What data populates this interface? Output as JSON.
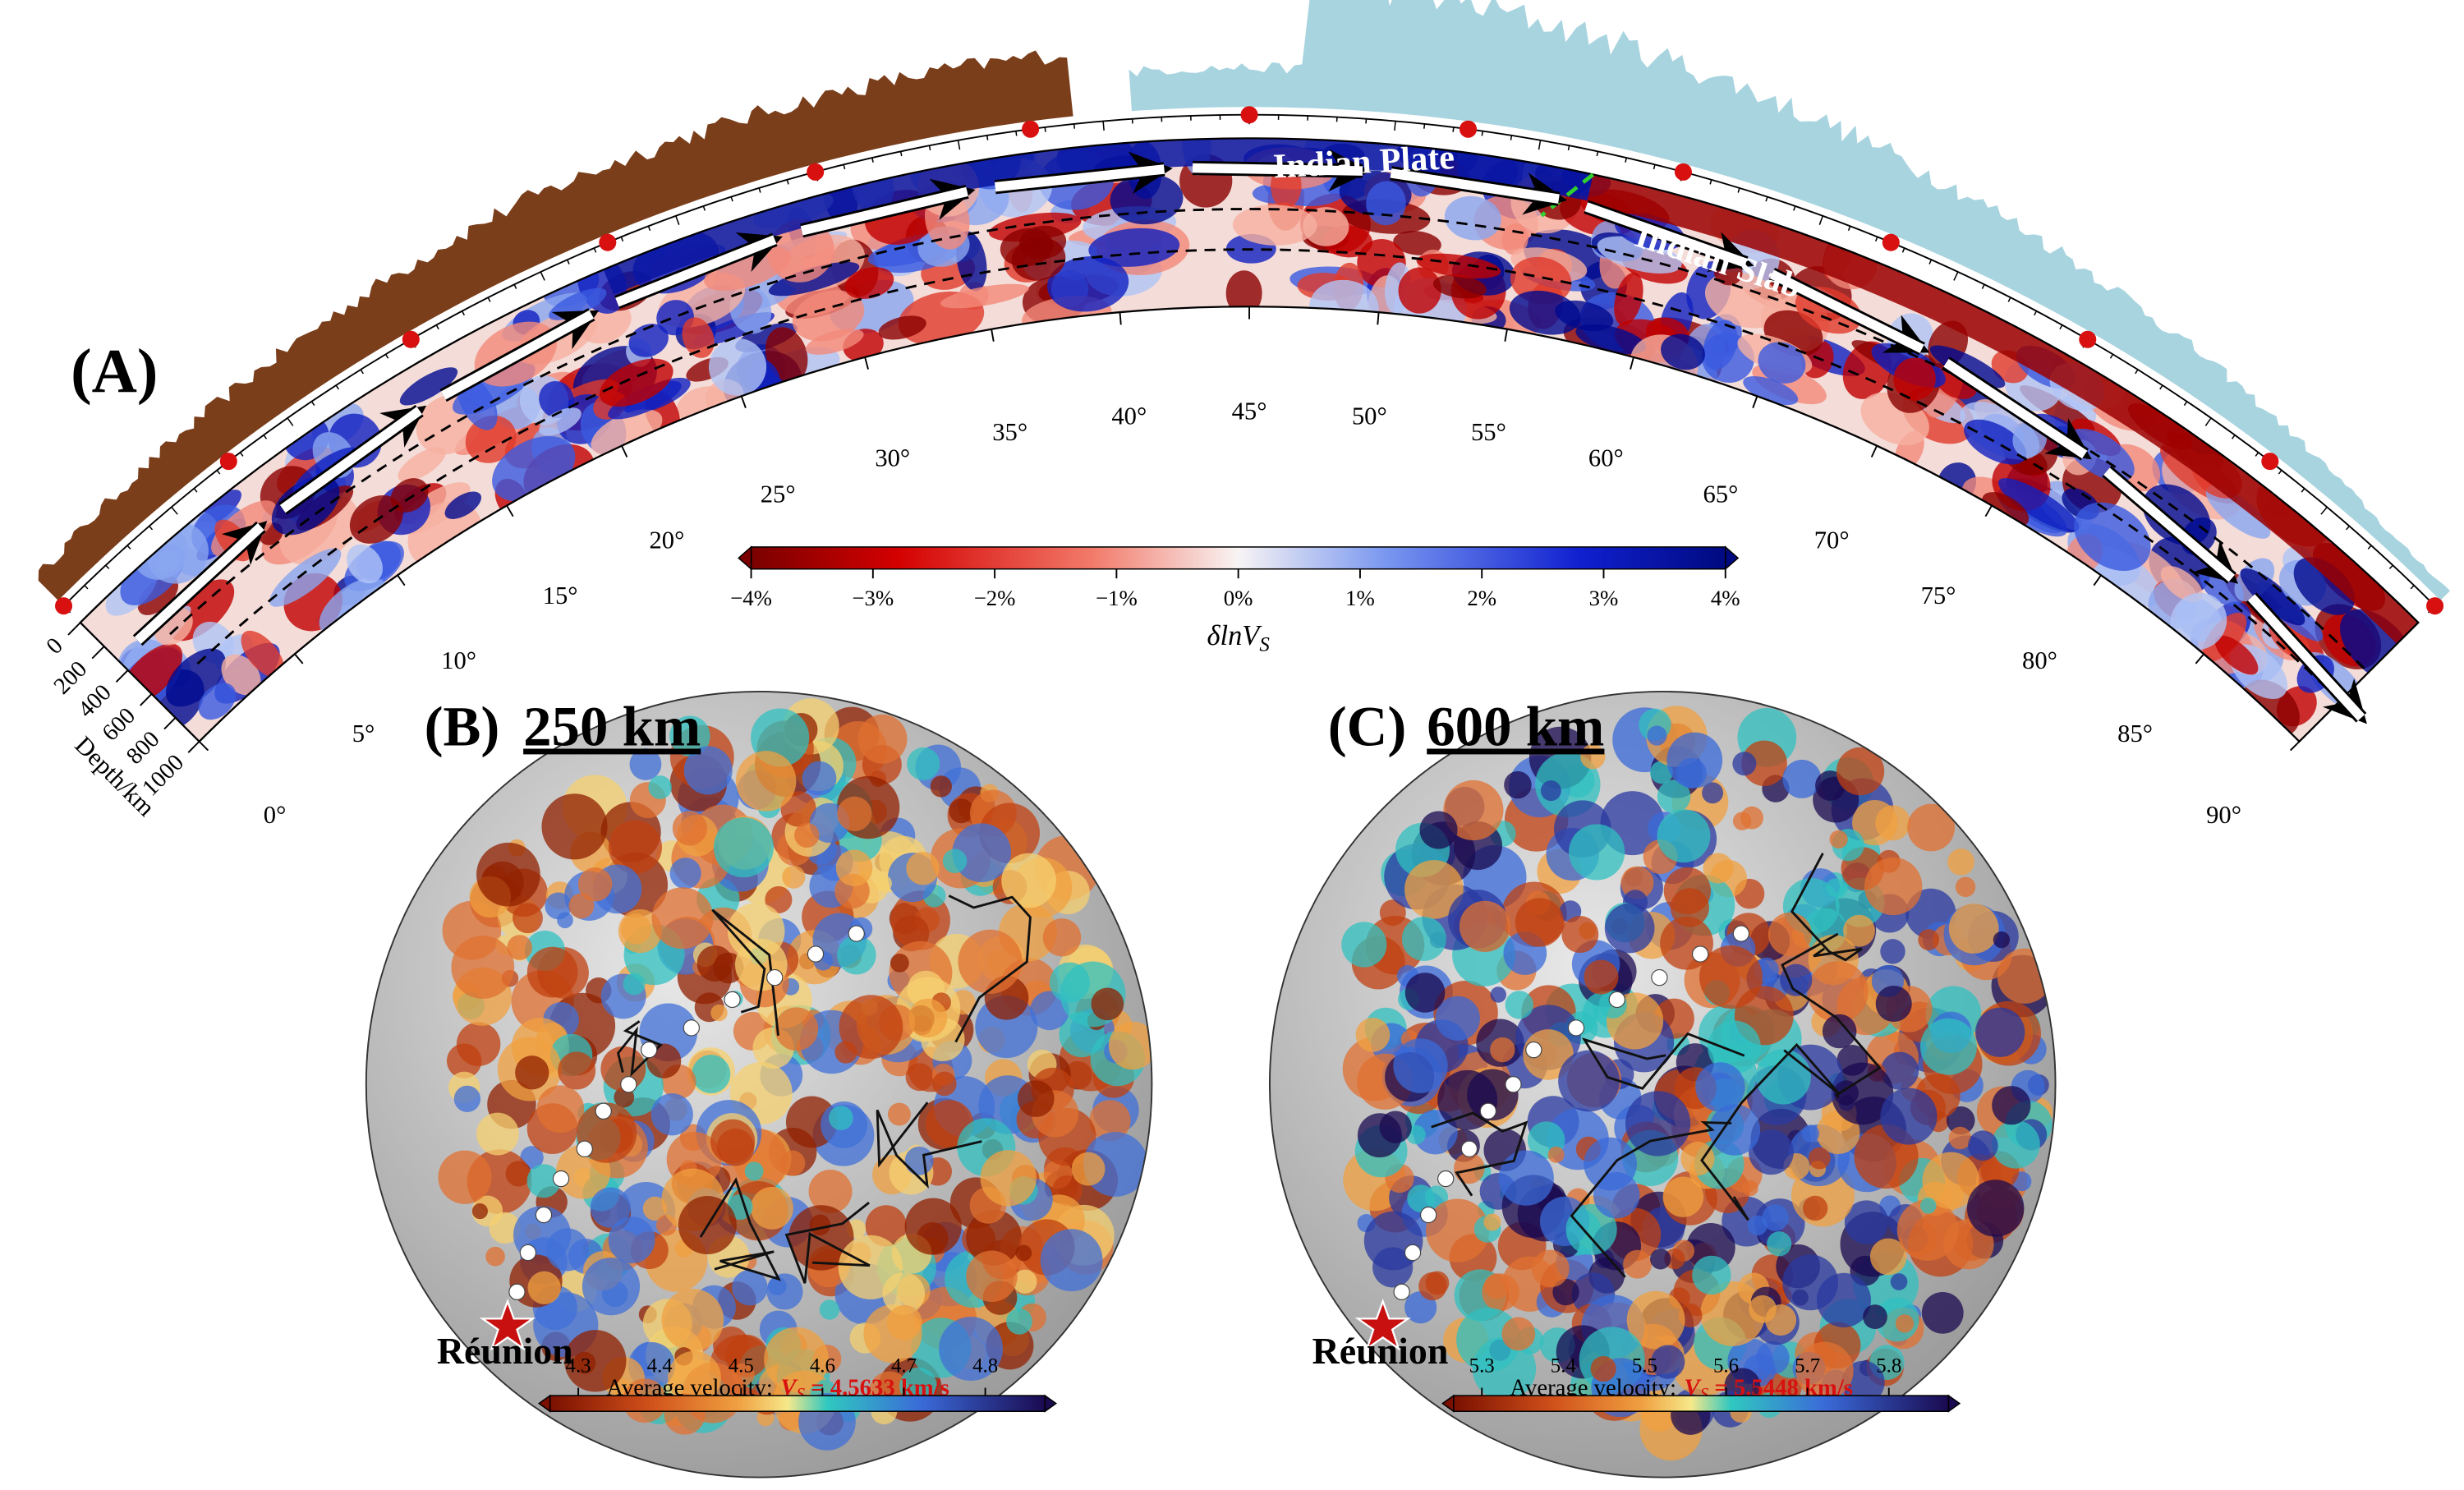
{
  "panel_a": {
    "label": "(A)",
    "annotations": [
      "Indian Plate",
      "Indian Slab"
    ],
    "degree_labels": [
      "0°",
      "5°",
      "10°",
      "15°",
      "20°",
      "25°",
      "30°",
      "35°",
      "40°",
      "45°",
      "50°",
      "55°",
      "60°",
      "65°",
      "70°",
      "75°",
      "80°",
      "85°",
      "90°"
    ],
    "depth_labels": [
      "0",
      "200",
      "400",
      "600",
      "800",
      "1000"
    ],
    "depth_axis_title": "Depth/km",
    "colorbar": {
      "ticks": [
        "−4%",
        "−3%",
        "−2%",
        "−1%",
        "0%",
        "1%",
        "2%",
        "3%",
        "4%"
      ],
      "label": "δlnV",
      "label_subscript": "S"
    }
  },
  "panel_b": {
    "label": "(B)",
    "depth": "250 km",
    "site": "Réunion",
    "velocity_caption": "Average velocity:",
    "velocity_symbol": "V",
    "velocity_subscript": "S",
    "velocity_value": " = 4.5633 km/s",
    "colorbar_ticks": [
      "4.3",
      "4.4",
      "4.5",
      "4.6",
      "4.7",
      "4.8"
    ]
  },
  "panel_c": {
    "label": "(C)",
    "depth": "600 km",
    "site": "Réunion",
    "velocity_caption": "Average velocity:",
    "velocity_symbol": "V",
    "velocity_subscript": "S",
    "velocity_value": " = 5.5448 km/s",
    "colorbar_ticks": [
      "5.3",
      "5.4",
      "5.5",
      "5.6",
      "5.7",
      "5.8"
    ]
  }
}
